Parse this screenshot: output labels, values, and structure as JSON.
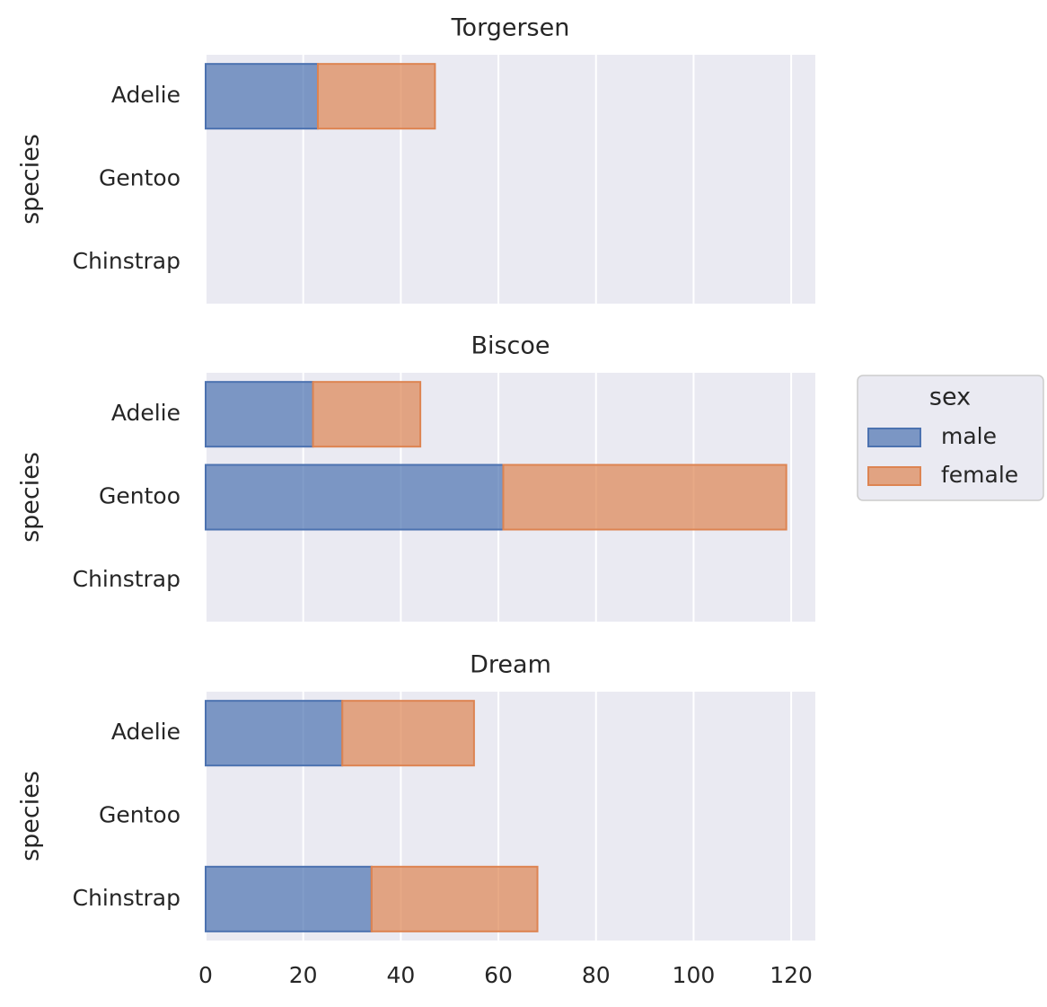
{
  "chart_data": [
    {
      "type": "bar",
      "stacked": true,
      "orientation": "horizontal",
      "title": "Torgersen",
      "y_label": "species",
      "categories": [
        "Adelie",
        "Gentoo",
        "Chinstrap"
      ],
      "series": [
        {
          "name": "male",
          "color": "#4c72b0",
          "values": [
            23,
            null,
            null
          ]
        },
        {
          "name": "female",
          "color": "#dd8452",
          "values": [
            24,
            null,
            null
          ]
        }
      ],
      "xlim": [
        0,
        124.95
      ],
      "xticks": [
        0,
        20,
        40,
        60,
        80,
        100,
        120
      ],
      "grid": true
    },
    {
      "type": "bar",
      "stacked": true,
      "orientation": "horizontal",
      "title": "Biscoe",
      "y_label": "species",
      "categories": [
        "Adelie",
        "Gentoo",
        "Chinstrap"
      ],
      "series": [
        {
          "name": "male",
          "color": "#4c72b0",
          "values": [
            22,
            61,
            null
          ]
        },
        {
          "name": "female",
          "color": "#dd8452",
          "values": [
            22,
            58,
            null
          ]
        }
      ],
      "xlim": [
        0,
        124.95
      ],
      "xticks": [
        0,
        20,
        40,
        60,
        80,
        100,
        120
      ],
      "grid": true,
      "legend_title": "sex",
      "legend": "outside right"
    },
    {
      "type": "bar",
      "stacked": true,
      "orientation": "horizontal",
      "title": "Dream",
      "y_label": "species",
      "categories": [
        "Adelie",
        "Gentoo",
        "Chinstrap"
      ],
      "series": [
        {
          "name": "male",
          "color": "#4c72b0",
          "values": [
            28,
            null,
            34
          ]
        },
        {
          "name": "female",
          "color": "#dd8452",
          "values": [
            27,
            null,
            34
          ]
        }
      ],
      "xlim": [
        0,
        124.95
      ],
      "xticks": [
        0,
        20,
        40,
        60,
        80,
        100,
        120
      ],
      "grid": true
    }
  ]
}
